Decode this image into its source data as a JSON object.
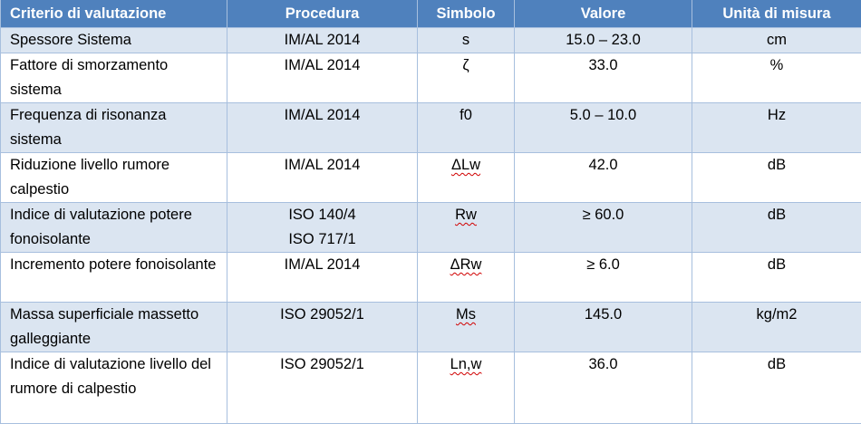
{
  "table": {
    "columns": [
      "Criterio di valutazione",
      "Procedura",
      "Simbolo",
      "Valore",
      "Unità di misura"
    ],
    "rows": [
      [
        "Spessore Sistema",
        "IM/AL 2014",
        "s",
        "15.0 – 23.0",
        "cm"
      ],
      [
        "Fattore di smorzamento sistema",
        "IM/AL 2014",
        "ζ",
        "33.0",
        "%"
      ],
      [
        "Frequenza di risonanza sistema",
        "IM/AL 2014",
        "f0",
        "5.0 – 10.0",
        "Hz"
      ],
      [
        "Riduzione livello rumore calpestio",
        "IM/AL 2014",
        "ΔLw",
        "42.0",
        "dB"
      ],
      [
        "Indice di valutazione potere fonoisolante",
        "ISO 140/4\nISO 717/1",
        "Rw",
        "≥ 60.0",
        "dB"
      ],
      [
        "Incremento potere fonoisolante",
        "IM/AL 2014",
        "ΔRw",
        "≥ 6.0",
        "dB"
      ],
      [
        "Massa superficiale massetto galleggiante",
        "ISO 29052/1",
        "Ms",
        "145.0",
        "kg/m2"
      ],
      [
        "Indice di valutazione livello del rumore di calpestio",
        "ISO 29052/1",
        "Ln,w",
        "36.0",
        "dB"
      ]
    ]
  }
}
